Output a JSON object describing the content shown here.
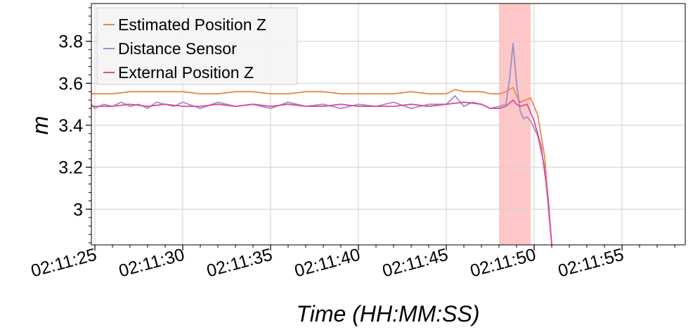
{
  "chart_data": {
    "type": "line",
    "title": "",
    "xlabel": "Time (HH:MM:SS)",
    "ylabel": "m",
    "xlim": [
      "02:11:24.8",
      "02:11:58.6"
    ],
    "ylim": [
      2.83,
      3.98
    ],
    "grid": true,
    "legend_position": "top-left",
    "x_ticks": [
      "02:11:25",
      "02:11:30",
      "02:11:35",
      "02:11:40",
      "02:11:45",
      "02:11:50",
      "02:11:55"
    ],
    "y_ticks": [
      3,
      3.2,
      3.4,
      3.6,
      3.8
    ],
    "shaded_region": {
      "x_start": "02:11:48.0",
      "x_end": "02:11:49.8",
      "color": "#ff9a9a"
    },
    "series": [
      {
        "name": "Estimated Position Z",
        "color": "#e8894a",
        "x": [
          "02:11:24.8",
          "02:11:25.0",
          "02:11:26.0",
          "02:11:27.0",
          "02:11:28.0",
          "02:11:29.0",
          "02:11:30.0",
          "02:11:31.0",
          "02:11:32.0",
          "02:11:33.0",
          "02:11:34.0",
          "02:11:35.0",
          "02:11:36.0",
          "02:11:37.0",
          "02:11:38.0",
          "02:11:39.0",
          "02:11:40.0",
          "02:11:41.0",
          "02:11:42.0",
          "02:11:43.0",
          "02:11:44.0",
          "02:11:45.0",
          "02:11:45.5",
          "02:11:46.0",
          "02:11:47.0",
          "02:11:47.5",
          "02:11:48.0",
          "02:11:48.4",
          "02:11:48.8",
          "02:11:49.0",
          "02:11:49.2",
          "02:11:49.5",
          "02:11:49.8",
          "02:11:50.2",
          "02:11:50.6",
          "02:11:51.0"
        ],
        "y": [
          3.55,
          3.55,
          3.55,
          3.56,
          3.56,
          3.56,
          3.56,
          3.55,
          3.55,
          3.56,
          3.56,
          3.55,
          3.55,
          3.56,
          3.56,
          3.55,
          3.55,
          3.55,
          3.55,
          3.56,
          3.55,
          3.55,
          3.57,
          3.56,
          3.56,
          3.55,
          3.55,
          3.56,
          3.58,
          3.54,
          3.51,
          3.52,
          3.53,
          3.45,
          3.25,
          2.83
        ]
      },
      {
        "name": "Distance Sensor",
        "color": "#9a8fc9",
        "x": [
          "02:11:24.8",
          "02:11:25.0",
          "02:11:25.5",
          "02:11:26.0",
          "02:11:26.5",
          "02:11:27.0",
          "02:11:27.5",
          "02:11:28.0",
          "02:11:28.5",
          "02:11:29.0",
          "02:11:29.5",
          "02:11:30.0",
          "02:11:31.0",
          "02:11:32.0",
          "02:11:33.0",
          "02:11:34.0",
          "02:11:35.0",
          "02:11:36.0",
          "02:11:37.0",
          "02:11:38.0",
          "02:11:39.0",
          "02:11:40.0",
          "02:11:41.0",
          "02:11:42.0",
          "02:11:43.0",
          "02:11:44.0",
          "02:11:45.0",
          "02:11:45.5",
          "02:11:46.0",
          "02:11:46.5",
          "02:11:47.0",
          "02:11:47.5",
          "02:11:48.0",
          "02:11:48.4",
          "02:11:48.6",
          "02:11:48.8",
          "02:11:49.0",
          "02:11:49.2",
          "02:11:49.4",
          "02:11:49.6",
          "02:11:49.8",
          "02:11:50.2",
          "02:11:50.6",
          "02:11:51.0"
        ],
        "y": [
          3.5,
          3.48,
          3.5,
          3.49,
          3.51,
          3.49,
          3.5,
          3.48,
          3.51,
          3.5,
          3.49,
          3.51,
          3.48,
          3.51,
          3.49,
          3.5,
          3.48,
          3.51,
          3.49,
          3.5,
          3.48,
          3.5,
          3.49,
          3.51,
          3.48,
          3.5,
          3.5,
          3.54,
          3.49,
          3.51,
          3.5,
          3.48,
          3.49,
          3.5,
          3.62,
          3.79,
          3.6,
          3.47,
          3.43,
          3.44,
          3.42,
          3.35,
          3.2,
          2.83
        ]
      },
      {
        "name": "External Position Z",
        "color": "#e04a98",
        "x": [
          "02:11:24.8",
          "02:11:26.0",
          "02:11:27.0",
          "02:11:28.0",
          "02:11:29.0",
          "02:11:30.0",
          "02:11:31.0",
          "02:11:32.0",
          "02:11:33.0",
          "02:11:34.0",
          "02:11:35.0",
          "02:11:36.0",
          "02:11:37.0",
          "02:11:38.0",
          "02:11:39.0",
          "02:11:40.0",
          "02:11:41.0",
          "02:11:42.0",
          "02:11:43.0",
          "02:11:44.0",
          "02:11:45.0",
          "02:11:46.0",
          "02:11:47.0",
          "02:11:47.5",
          "02:11:48.0",
          "02:11:48.4",
          "02:11:48.8",
          "02:11:49.0",
          "02:11:49.2",
          "02:11:49.6",
          "02:11:50.0",
          "02:11:50.4",
          "02:11:50.8",
          "02:11:51.0"
        ],
        "y": [
          3.49,
          3.49,
          3.5,
          3.49,
          3.5,
          3.49,
          3.49,
          3.5,
          3.49,
          3.5,
          3.49,
          3.5,
          3.49,
          3.49,
          3.5,
          3.49,
          3.49,
          3.49,
          3.5,
          3.49,
          3.5,
          3.51,
          3.5,
          3.48,
          3.48,
          3.49,
          3.52,
          3.5,
          3.49,
          3.5,
          3.42,
          3.3,
          3.05,
          2.83
        ]
      }
    ]
  }
}
